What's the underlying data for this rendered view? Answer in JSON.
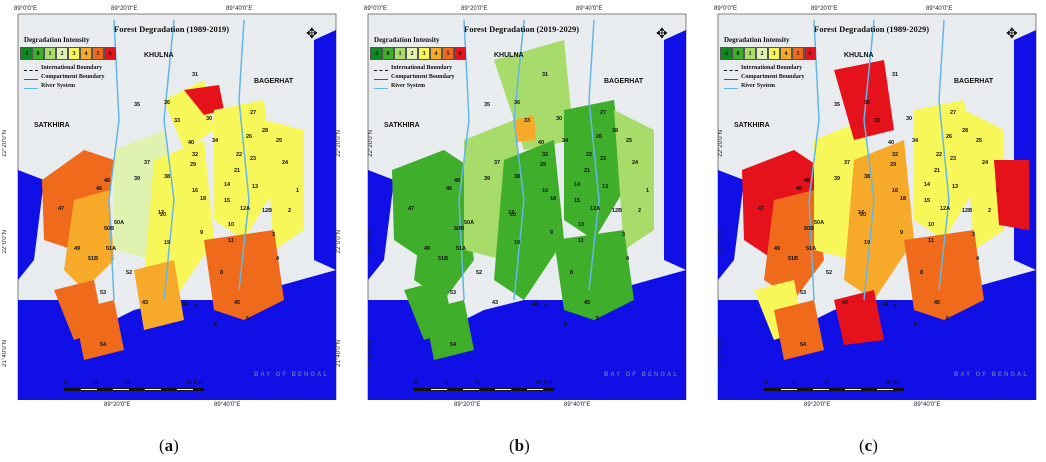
{
  "colors": {
    "ocean": "#1010e6",
    "land": "#e8ecee",
    "river": "#63b6e8",
    "minus1": "#0f8a1f",
    "zero": "#3fae2a",
    "one": "#a7db6a",
    "two": "#dff2b0",
    "three": "#f7f75a",
    "four": "#f7a92a",
    "five": "#f06a1c",
    "six": "#e5121b"
  },
  "legend": {
    "title": "Degradation Intensity",
    "classes": [
      "-1",
      "0",
      "1",
      "2",
      "3",
      "4",
      "5",
      "6"
    ],
    "international_boundary": "International Boundary",
    "compartment_boundary": "Compartment Boundary",
    "river_system": "River System"
  },
  "ticks": {
    "top": [
      "89°0'0\"E",
      "89°20'0\"E",
      "89°40'0\"E"
    ],
    "bottom": [
      "89°20'0\"E",
      "89°40'0\"E"
    ],
    "left": [
      "22°20'0\"N",
      "22°0'0\"N",
      "21°40'0\"N"
    ],
    "right": [
      "22°20'0\"N",
      "22°0'0\"N",
      "21°40'0\"N"
    ]
  },
  "places": {
    "khulna": "KHULNA",
    "bagerhat": "BAGERHAT",
    "satkhira": "SATKHIRA",
    "bay": "BAY OF BENGAL"
  },
  "scale": {
    "zero": "0",
    "ten": "10",
    "twenty": "20",
    "forty": "40 Km"
  },
  "panels": [
    {
      "title": "Forest Degradation (1989-2019)",
      "caption_letter": "a"
    },
    {
      "title": "Forest Degradation (2019-2029)",
      "caption_letter": "b"
    },
    {
      "title": "Forest Degradation (1989-2029)",
      "caption_letter": "c"
    }
  ],
  "compartments": [
    "31",
    "33",
    "30",
    "35",
    "36",
    "27",
    "34",
    "28",
    "26",
    "40",
    "32",
    "25",
    "22",
    "23",
    "37",
    "21",
    "29",
    "24",
    "39",
    "38",
    "16",
    "14",
    "13",
    "18",
    "15",
    "1",
    "17",
    "12A",
    "12B",
    "2",
    "20",
    "48",
    "46",
    "47",
    "50A",
    "50B",
    "19",
    "10",
    "11",
    "9",
    "3",
    "49",
    "51A",
    "51B",
    "52",
    "4",
    "8",
    "53",
    "43",
    "44",
    "45",
    "7",
    "6",
    "5",
    "54"
  ]
}
